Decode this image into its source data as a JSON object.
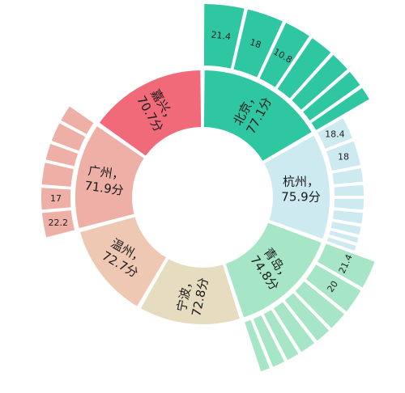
{
  "chart_data": {
    "type": "sunburst",
    "title": "",
    "inner": [
      {
        "name": "北京",
        "score": "77.1分",
        "start": 0,
        "end": 60,
        "color": "#2fc7a1",
        "labelRot": -62
      },
      {
        "name": "杭州",
        "score": "75.9分",
        "start": 60,
        "end": 110,
        "color": "#cdeaf0",
        "labelRot": 0
      },
      {
        "name": "青岛",
        "score": "74.8分",
        "start": 110,
        "end": 162,
        "color": "#a6e6c7",
        "labelRot": 55
      },
      {
        "name": "宁波",
        "score": "72.8分",
        "start": 162,
        "end": 210,
        "color": "#e6ddc0",
        "labelRot": -78
      },
      {
        "name": "温州",
        "score": "72.7分",
        "start": 210,
        "end": 255,
        "color": "#eec8b3",
        "labelRot": 30
      },
      {
        "name": "广州",
        "score": "71.9分",
        "start": 255,
        "end": 305,
        "color": "#eeb0a6",
        "labelRot": 8
      },
      {
        "name": "嘉兴",
        "score": "70.7分",
        "start": 305,
        "end": 360,
        "color": "#f06a7a",
        "labelRot": 60
      }
    ],
    "outer": [
      {
        "parent": 0,
        "color": "#2fc7a1",
        "outerR": 240,
        "values": [
          "21.4",
          "18",
          "10.8",
          "",
          "",
          "",
          ""
        ],
        "spans": [
          13,
          12,
          9,
          8,
          7,
          6,
          5
        ]
      },
      {
        "parent": 1,
        "color": "#cdeaf0",
        "outerR": 200,
        "values": [
          "18.4",
          "18",
          "",
          "",
          "",
          "",
          "",
          "",
          ""
        ],
        "spans": [
          9,
          10,
          6,
          5,
          5,
          5,
          4,
          3,
          3
        ]
      },
      {
        "parent": 2,
        "color": "#a6e6c7",
        "outerR": 228,
        "values": [
          "21.4",
          "20",
          "",
          "",
          "",
          "",
          "",
          ""
        ],
        "spans": [
          10,
          9,
          7,
          6,
          6,
          5,
          5,
          4
        ]
      },
      {
        "parent": 5,
        "color": "#eeb0a6",
        "outerR": 200,
        "values": [
          "22.2",
          "17",
          "",
          "",
          "",
          ""
        ],
        "spans": [
          10,
          9,
          9,
          7,
          8,
          7
        ]
      }
    ]
  }
}
